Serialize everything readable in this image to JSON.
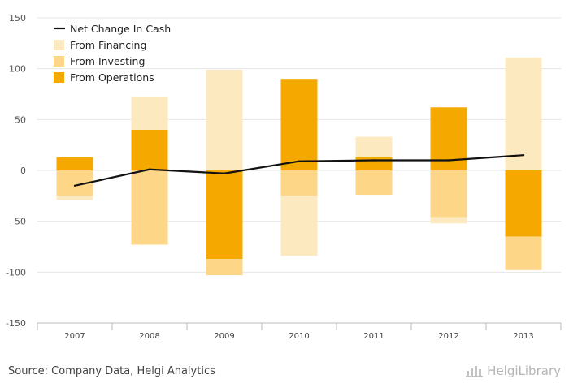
{
  "chart_data": {
    "type": "bar",
    "categories": [
      "2007",
      "2008",
      "2009",
      "2010",
      "2011",
      "2012",
      "2013"
    ],
    "series": [
      {
        "name": "From Operations",
        "values": [
          13,
          40,
          -87,
          90,
          13,
          62,
          -65
        ],
        "color": "#f5a800"
      },
      {
        "name": "From Investing",
        "values": [
          -25,
          -73,
          -16,
          -25,
          -24,
          -46,
          -33
        ],
        "color": "#fdd687"
      },
      {
        "name": "From Financing",
        "values": [
          -4,
          32,
          99,
          -59,
          20,
          -6,
          111
        ],
        "color": "#fde9bf"
      },
      {
        "name": "Net Change In Cash",
        "type": "line",
        "values": [
          -15,
          1,
          -3,
          9,
          10,
          10,
          15
        ],
        "color": "#111111"
      }
    ],
    "stacked": true,
    "ylim": [
      -150,
      150
    ],
    "yticks": [
      -150,
      -100,
      -50,
      0,
      50,
      100,
      150
    ],
    "grid": true,
    "legend_position": "top-left"
  },
  "legend": [
    {
      "label": "Net Change In Cash",
      "kind": "line",
      "color": "#111111"
    },
    {
      "label": "From Financing",
      "kind": "box",
      "color": "#fde9bf"
    },
    {
      "label": "From Investing",
      "kind": "box",
      "color": "#fdd687"
    },
    {
      "label": "From Operations",
      "kind": "box",
      "color": "#f5a800"
    }
  ],
  "footer": {
    "source": "Source: Company Data, Helgi Analytics",
    "brand": "HelgiLibrary"
  }
}
